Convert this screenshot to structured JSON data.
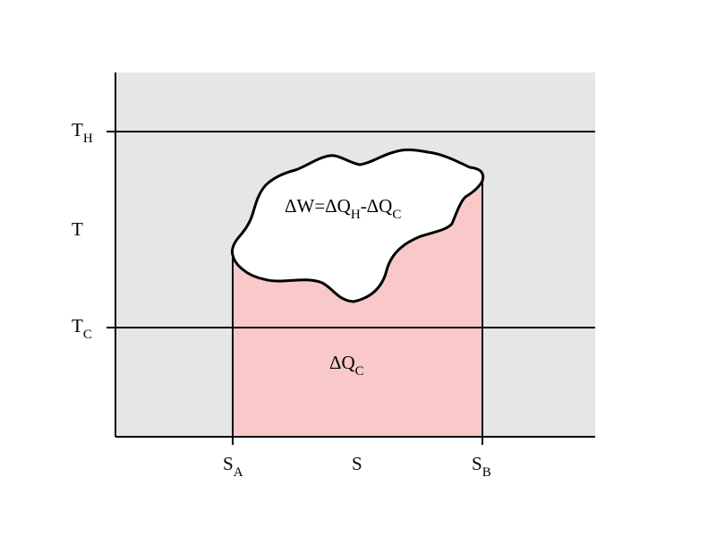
{
  "diagram": {
    "y_axis_label": "T",
    "x_axis_label": "S",
    "levels": [
      {
        "symbol": "T",
        "subscript": "H"
      },
      {
        "symbol": "T",
        "subscript": "C"
      }
    ],
    "ticks": [
      {
        "symbol": "S",
        "subscript": "A"
      },
      {
        "symbol": "S",
        "subscript": "B"
      }
    ],
    "work_label": {
      "prefix": "ΔW=ΔQ",
      "sub1": "H",
      "mid": "-ΔQ",
      "sub2": "C"
    },
    "heat_label": {
      "symbol": "ΔQ",
      "subscript": "C"
    },
    "colors": {
      "background": "#e6e6e6",
      "heat_region": "#f9c9ca",
      "work_region": "#ffffff",
      "lines": "#000000"
    }
  }
}
